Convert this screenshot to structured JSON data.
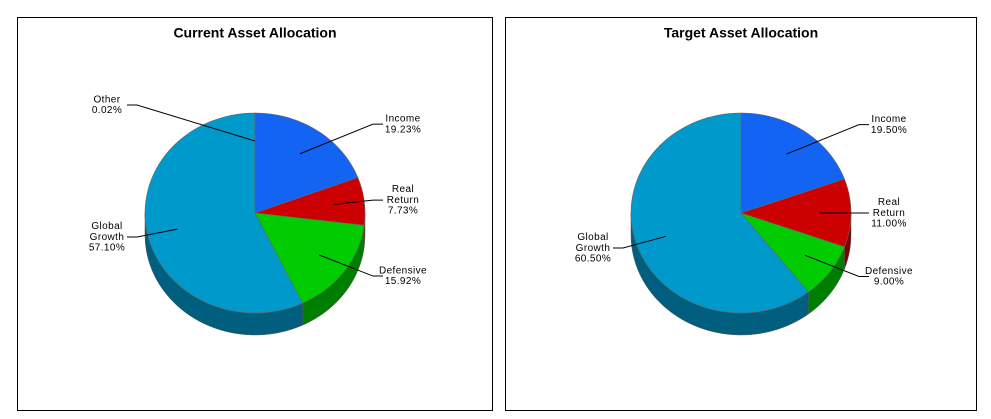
{
  "chart_data": [
    {
      "type": "pie",
      "title": "Current Asset Allocation",
      "categories": [
        "Income",
        "Real Return",
        "Defensive",
        "Global Growth",
        "Other"
      ],
      "values": [
        19.23,
        7.73,
        15.92,
        57.1,
        0.02
      ],
      "value_labels": [
        "19.23%",
        "7.73%",
        "15.92%",
        "57.10%",
        "0.02%"
      ],
      "colors": [
        "#1464f4",
        "#cc0000",
        "#00cc00",
        "#0099cc",
        "#8a8a8a"
      ]
    },
    {
      "type": "pie",
      "title": "Target Asset Allocation",
      "categories": [
        "Income",
        "Real Return",
        "Defensive",
        "Global Growth"
      ],
      "values": [
        19.5,
        11.0,
        9.0,
        60.5
      ],
      "value_labels": [
        "19.50%",
        "11.00%",
        "9.00%",
        "60.50%"
      ],
      "colors": [
        "#1464f4",
        "#cc0000",
        "#00cc00",
        "#0099cc"
      ]
    }
  ]
}
